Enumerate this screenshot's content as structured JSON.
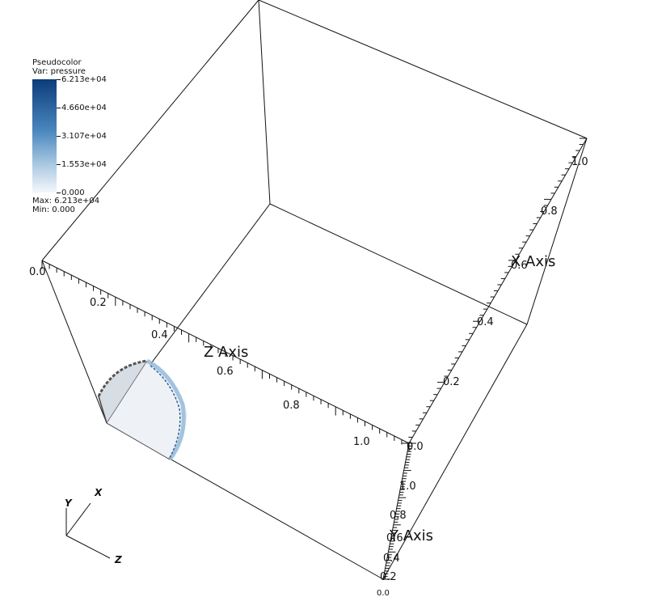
{
  "legend": {
    "title": "Pseudocolor",
    "variable": "Var: pressure",
    "ticks": [
      "6.213e+04",
      "4.660e+04",
      "3.107e+04",
      "1.553e+04",
      "0.000"
    ],
    "max": "Max:  6.213e+04",
    "min": "Min:  0.000",
    "color_high": "#0b3c7a",
    "color_low": "#f4f7fb"
  },
  "axes": {
    "z_title": "Z Axis",
    "x_title": "X Axis",
    "y_title": "Y Axis",
    "z_ticks": [
      "0.0",
      "0.2",
      "0.4",
      "0.6",
      "0.8",
      "1.0"
    ],
    "x_ticks": [
      "0.0",
      "0.2",
      "0.4",
      "0.6",
      "0.8",
      "1.0"
    ],
    "y_ticks": [
      "0.0",
      "0.2",
      "0.4",
      "0.6",
      "0.8",
      "1.0"
    ]
  },
  "triad": {
    "x": "X",
    "y": "Y",
    "z": "Z"
  },
  "colors": {
    "frame": "#111111",
    "surface": "#e6ecf3",
    "surface_edge": "#8fb6d9"
  }
}
